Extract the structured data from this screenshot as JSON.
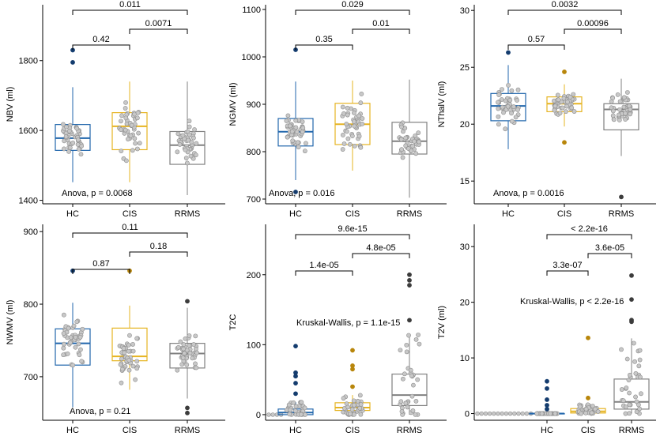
{
  "colors": {
    "HC": "#2166ac",
    "CIS": "#e6b422",
    "RRMS": "#808080",
    "point_fill": "#c8c8c8",
    "point_edge": "#8c8c8c",
    "HC_outlier": "#143c6e",
    "CIS_outlier": "#b8860b",
    "RRMS_outlier": "#3c3c3c"
  },
  "chart_data": [
    {
      "type": "boxplot",
      "ylabel": "NBV (ml)",
      "categories": [
        "HC",
        "CIS",
        "RRMS"
      ],
      "ylim": [
        1390,
        1960
      ],
      "yticks": [
        1400,
        1600,
        1800
      ],
      "boxes": [
        {
          "q1": 1543,
          "median": 1578,
          "q3": 1617,
          "wlo": 1452,
          "whi": 1724,
          "outliers": [
            1795,
            1830
          ]
        },
        {
          "q1": 1545,
          "median": 1612,
          "q3": 1651,
          "wlo": 1452,
          "whi": 1740,
          "outliers": []
        },
        {
          "q1": 1503,
          "median": 1558,
          "q3": 1597,
          "wlo": 1415,
          "whi": 1740,
          "outliers": []
        }
      ],
      "comparisons": [
        {
          "from": 0,
          "to": 1,
          "label": "0.42"
        },
        {
          "from": 1,
          "to": 2,
          "label": "0.0071"
        },
        {
          "from": 0,
          "to": 2,
          "label": "0.011"
        }
      ],
      "test": "Anova, p = 0.0068"
    },
    {
      "type": "boxplot",
      "ylabel": "NGMV (ml)",
      "categories": [
        "HC",
        "CIS",
        "RRMS"
      ],
      "ylim": [
        690,
        1110
      ],
      "yticks": [
        700,
        800,
        900,
        1000,
        1100
      ],
      "boxes": [
        {
          "q1": 812,
          "median": 842,
          "q3": 870,
          "wlo": 740,
          "whi": 948,
          "outliers": [
            715,
            1015
          ]
        },
        {
          "q1": 815,
          "median": 858,
          "q3": 902,
          "wlo": 760,
          "whi": 950,
          "outliers": []
        },
        {
          "q1": 795,
          "median": 822,
          "q3": 862,
          "wlo": 703,
          "whi": 952,
          "outliers": []
        }
      ],
      "comparisons": [
        {
          "from": 0,
          "to": 1,
          "label": "0.35"
        },
        {
          "from": 1,
          "to": 2,
          "label": "0.01"
        },
        {
          "from": 0,
          "to": 2,
          "label": "0.029"
        }
      ],
      "test": "Anova, p = 0.016"
    },
    {
      "type": "boxplot",
      "ylabel": "NThalV (ml)",
      "categories": [
        "HC",
        "CIS",
        "RRMS"
      ],
      "ylim": [
        13,
        30.5
      ],
      "yticks": [
        15,
        20,
        25,
        30
      ],
      "boxes": [
        {
          "q1": 20.3,
          "median": 21.6,
          "q3": 22.7,
          "wlo": 17.8,
          "whi": 25.2,
          "outliers": [
            26.3
          ]
        },
        {
          "q1": 21.1,
          "median": 21.8,
          "q3": 22.4,
          "wlo": 19.8,
          "whi": 23.5,
          "outliers": [
            18.4,
            24.6
          ]
        },
        {
          "q1": 19.5,
          "median": 21.3,
          "q3": 21.8,
          "wlo": 17.2,
          "whi": 24.0,
          "outliers": [
            13.6
          ]
        }
      ],
      "comparisons": [
        {
          "from": 0,
          "to": 1,
          "label": "0.57"
        },
        {
          "from": 1,
          "to": 2,
          "label": "0.00096"
        },
        {
          "from": 0,
          "to": 2,
          "label": "0.0032"
        }
      ],
      "test": "Anova, p = 0.0016"
    },
    {
      "type": "boxplot",
      "ylabel": "NWMV (ml)",
      "categories": [
        "HC",
        "CIS",
        "RRMS"
      ],
      "ylim": [
        640,
        910
      ],
      "yticks": [
        700,
        800,
        900
      ],
      "boxes": [
        {
          "q1": 716,
          "median": 746,
          "q3": 766,
          "wlo": 658,
          "whi": 802,
          "outliers": [
            846
          ]
        },
        {
          "q1": 722,
          "median": 728,
          "q3": 767,
          "wlo": 682,
          "whi": 798,
          "outliers": [
            846
          ]
        },
        {
          "q1": 712,
          "median": 732,
          "q3": 746,
          "wlo": 670,
          "whi": 795,
          "outliers": [
            650,
            657,
            804
          ]
        }
      ],
      "comparisons": [
        {
          "from": 0,
          "to": 1,
          "label": "0.87"
        },
        {
          "from": 1,
          "to": 2,
          "label": "0.18"
        },
        {
          "from": 0,
          "to": 2,
          "label": "0.11"
        }
      ],
      "test": "Anova, p = 0.21"
    },
    {
      "type": "boxplot",
      "ylabel": "T2C",
      "categories": [
        "HC",
        "CIS",
        "RRMS"
      ],
      "ylim": [
        -8,
        272
      ],
      "yticks": [
        0,
        100,
        200
      ],
      "boxes": [
        {
          "q1": 0,
          "median": 3,
          "q3": 8,
          "wlo": 0,
          "whi": 18,
          "outliers": [
            30,
            45,
            55,
            60,
            98
          ]
        },
        {
          "q1": 6,
          "median": 10,
          "q3": 17,
          "wlo": 0,
          "whi": 28,
          "outliers": [
            40,
            65,
            70,
            92
          ]
        },
        {
          "q1": 13,
          "median": 28,
          "q3": 58,
          "wlo": 0,
          "whi": 115,
          "outliers": [
            135,
            185,
            192,
            200
          ]
        }
      ],
      "comparisons": [
        {
          "from": 0,
          "to": 1,
          "label": "1.4e-05"
        },
        {
          "from": 1,
          "to": 2,
          "label": "4.8e-05"
        },
        {
          "from": 0,
          "to": 2,
          "label": "9.6e-15"
        }
      ],
      "test": "Kruskal-Wallis, p = 1.1e-15"
    },
    {
      "type": "boxplot",
      "ylabel": "T2V (ml)",
      "categories": [
        "HC",
        "CIS",
        "RRMS"
      ],
      "ylim": [
        -1.2,
        34
      ],
      "yticks": [
        0,
        10,
        20,
        30
      ],
      "boxes": [
        {
          "q1": 0,
          "median": 0,
          "q3": 0,
          "wlo": 0,
          "whi": 0,
          "outliers": [
            0.8,
            1.5,
            2.5,
            4.5,
            5.8
          ]
        },
        {
          "q1": 0.1,
          "median": 0.4,
          "q3": 0.9,
          "wlo": 0,
          "whi": 1.8,
          "outliers": [
            2.8,
            13.6
          ]
        },
        {
          "q1": 0.8,
          "median": 2.1,
          "q3": 6.2,
          "wlo": 0,
          "whi": 13.5,
          "outliers": [
            16.5,
            16.8,
            20.5,
            24.8
          ]
        }
      ],
      "comparisons": [
        {
          "from": 0,
          "to": 1,
          "label": "3.3e-07"
        },
        {
          "from": 1,
          "to": 2,
          "label": "3.6e-05"
        },
        {
          "from": 0,
          "to": 2,
          "label": "< 2.2e-16"
        }
      ],
      "test": "Kruskal-Wallis, p < 2.2e-16"
    }
  ]
}
